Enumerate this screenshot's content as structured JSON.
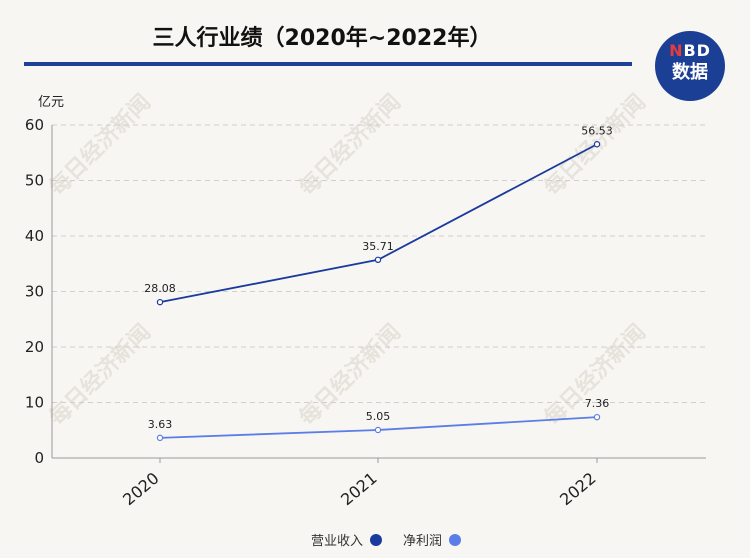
{
  "title": "三人行业绩（2020年~2022年）",
  "logo": {
    "line1_n": "N",
    "line1_rest": "BD",
    "line2": "数据"
  },
  "watermark": "每日经济新闻",
  "colors": {
    "revenue": "#1a3a9e",
    "profit": "#5b7de8",
    "rule": "#1d4197",
    "logo_bg": "#1b3f95"
  },
  "chart_data": {
    "type": "line",
    "title": "三人行业绩（2020年~2022年）",
    "ylabel": "亿元",
    "xlabel": "",
    "categories": [
      "2020",
      "2021",
      "2022"
    ],
    "ylim": [
      0,
      60
    ],
    "yticks": [
      0,
      10,
      20,
      30,
      40,
      50,
      60
    ],
    "grid": true,
    "legend": "bottom-center",
    "series": [
      {
        "name": "营业收入",
        "values": [
          28.08,
          35.71,
          56.53
        ],
        "labels": [
          "28.08",
          "35.71",
          "56.53"
        ],
        "color": "#1a3a9e"
      },
      {
        "name": "净利润",
        "values": [
          3.63,
          5.05,
          7.36
        ],
        "labels": [
          "3.63",
          "5.05",
          "7.36"
        ],
        "color": "#5b7de8"
      }
    ]
  }
}
